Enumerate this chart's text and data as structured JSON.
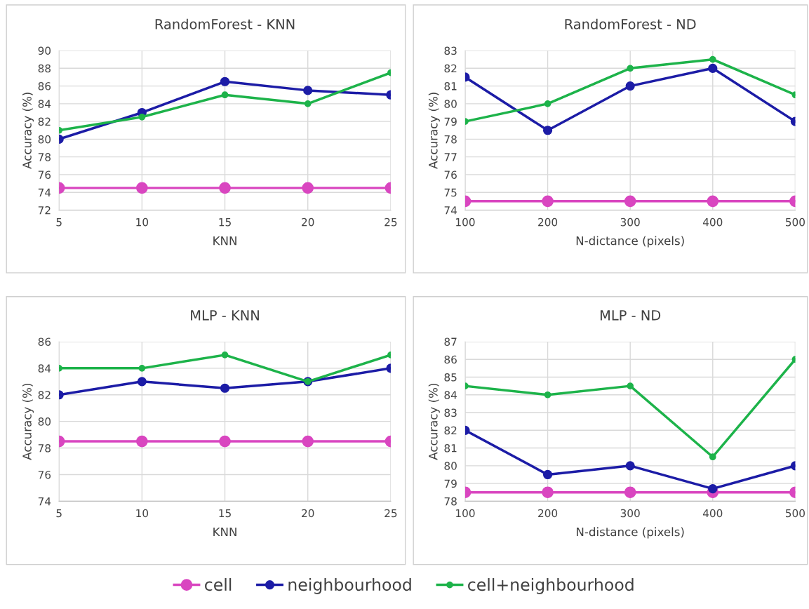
{
  "chart_data": [
    {
      "type": "line",
      "title": "RandomForest - KNN",
      "xlabel": "KNN",
      "ylabel": "Accuracy (%)",
      "x": [
        5,
        10,
        15,
        20,
        25
      ],
      "xlim": [
        5,
        25
      ],
      "xticks": [
        5,
        10,
        15,
        20,
        25
      ],
      "ylim": [
        72,
        90
      ],
      "yticks": [
        72,
        74,
        76,
        78,
        80,
        82,
        84,
        86,
        88,
        90
      ],
      "grid": true,
      "marker": "circle",
      "legend": "bottom",
      "series": [
        {
          "name": "cell",
          "color": "#d946c0",
          "values": [
            74.5,
            74.5,
            74.5,
            74.5,
            74.5
          ]
        },
        {
          "name": "neighbourhood",
          "color": "#1c1ca6",
          "values": [
            80,
            83,
            86.5,
            85.5,
            85
          ]
        },
        {
          "name": "cell+neighbourhood",
          "color": "#1db34a",
          "values": [
            81,
            82.5,
            85,
            84,
            87.5
          ]
        }
      ]
    },
    {
      "type": "line",
      "title": "RandomForest - ND",
      "xlabel": "N-dictance (pixels)",
      "ylabel": "Accuracy (%)",
      "x": [
        100,
        200,
        300,
        400,
        500
      ],
      "xlim": [
        100,
        500
      ],
      "xticks": [
        100,
        200,
        300,
        400,
        500
      ],
      "ylim": [
        74,
        83
      ],
      "yticks": [
        74,
        75,
        76,
        77,
        78,
        79,
        80,
        81,
        82,
        83
      ],
      "grid": true,
      "marker": "circle",
      "legend": "bottom",
      "series": [
        {
          "name": "cell",
          "color": "#d946c0",
          "values": [
            74.5,
            74.5,
            74.5,
            74.5,
            74.5
          ]
        },
        {
          "name": "neighbourhood",
          "color": "#1c1ca6",
          "values": [
            81.5,
            78.5,
            81,
            82,
            79
          ]
        },
        {
          "name": "cell+neighbourhood",
          "color": "#1db34a",
          "values": [
            79,
            80,
            82,
            82.5,
            80.5
          ]
        }
      ]
    },
    {
      "type": "line",
      "title": "MLP - KNN",
      "xlabel": "KNN",
      "ylabel": "Accuracy (%)",
      "x": [
        5,
        10,
        15,
        20,
        25
      ],
      "xlim": [
        5,
        25
      ],
      "xticks": [
        5,
        10,
        15,
        20,
        25
      ],
      "ylim": [
        74,
        86
      ],
      "yticks": [
        74,
        76,
        78,
        80,
        82,
        84,
        86
      ],
      "grid": true,
      "marker": "circle",
      "legend": "bottom",
      "series": [
        {
          "name": "cell",
          "color": "#d946c0",
          "values": [
            78.5,
            78.5,
            78.5,
            78.5,
            78.5
          ]
        },
        {
          "name": "neighbourhood",
          "color": "#1c1ca6",
          "values": [
            82,
            83,
            82.5,
            83,
            84
          ]
        },
        {
          "name": "cell+neighbourhood",
          "color": "#1db34a",
          "values": [
            84,
            84,
            85,
            83,
            85
          ]
        }
      ]
    },
    {
      "type": "line",
      "title": "MLP - ND",
      "xlabel": "N-distance (pixels)",
      "ylabel": "Accuracy (%)",
      "x": [
        100,
        200,
        300,
        400,
        500
      ],
      "xlim": [
        100,
        500
      ],
      "xticks": [
        100,
        200,
        300,
        400,
        500
      ],
      "ylim": [
        78,
        87
      ],
      "yticks": [
        78,
        79,
        80,
        81,
        82,
        83,
        84,
        85,
        86,
        87
      ],
      "grid": true,
      "marker": "circle",
      "legend": "bottom",
      "series": [
        {
          "name": "cell",
          "color": "#d946c0",
          "values": [
            78.5,
            78.5,
            78.5,
            78.5,
            78.5
          ]
        },
        {
          "name": "neighbourhood",
          "color": "#1c1ca6",
          "values": [
            82,
            79.5,
            80,
            78.7,
            80
          ]
        },
        {
          "name": "cell+neighbourhood",
          "color": "#1db34a",
          "values": [
            84.5,
            84,
            84.5,
            80.5,
            86
          ]
        }
      ]
    }
  ]
}
